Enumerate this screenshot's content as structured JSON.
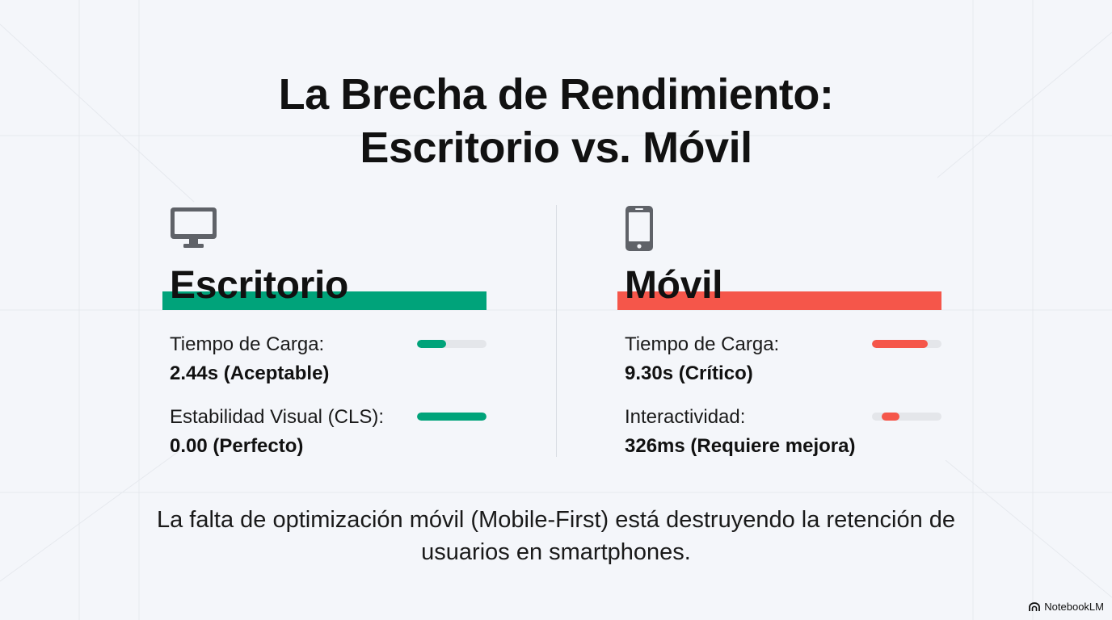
{
  "title": {
    "line1": "La Brecha de Rendimiento:",
    "line2": "Escritorio vs. Móvil"
  },
  "colors": {
    "desktop_accent": "#00a37a",
    "mobile_accent": "#f5564a",
    "meter_track": "#e4e6ea",
    "icon": "#5f6268"
  },
  "desktop": {
    "icon": "desktop-monitor-icon",
    "heading": "Escritorio",
    "metrics": [
      {
        "label": "Tiempo de Carga:",
        "value": "2.44s (Aceptable)",
        "level": 0.42,
        "offset": 0
      },
      {
        "label": "Estabilidad Visual (CLS):",
        "value": "0.00 (Perfecto)",
        "level": 1.0,
        "offset": 0
      }
    ]
  },
  "mobile": {
    "icon": "smartphone-icon",
    "heading": "Móvil",
    "metrics": [
      {
        "label": "Tiempo de Carga:",
        "value": "9.30s (Crítico)",
        "level": 0.8,
        "offset": 0
      },
      {
        "label": "Interactividad:",
        "value": "326ms (Requiere mejora)",
        "level": 0.26,
        "offset": 0.14
      }
    ]
  },
  "footer": "La falta de optimización móvil (Mobile-First) está destruyendo la retención de usuarios en smartphones.",
  "brand": "NotebookLM"
}
